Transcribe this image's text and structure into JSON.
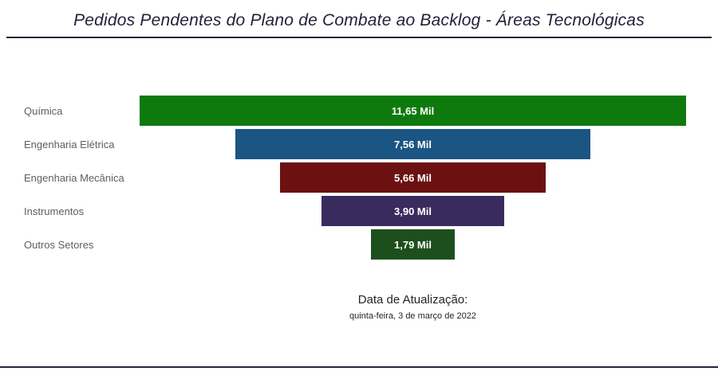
{
  "chart_data": {
    "type": "bar",
    "layout": "funnel-centered",
    "title": "Pedidos Pendentes do Plano de Combate ao Backlog - Áreas Tecnológicas",
    "categories": [
      "Química",
      "Engenharia Elétrica",
      "Engenharia Mecânica",
      "Instrumentos",
      "Outros Setores"
    ],
    "values_mil": [
      11.65,
      7.56,
      5.66,
      3.9,
      1.79
    ],
    "value_labels": [
      "11,65 Mil",
      "7,56 Mil",
      "5,66 Mil",
      "3,90 Mil",
      "1,79 Mil"
    ],
    "colors": [
      "#0e7a0e",
      "#1b5583",
      "#6b1111",
      "#3a2b5e",
      "#1d4f1d"
    ],
    "xlim": [
      0,
      11.65
    ],
    "grid": false,
    "legend": "none",
    "value_label_position": "inside-center",
    "category_label_position": "left"
  },
  "footer": {
    "label": "Data de Atualização:",
    "date": "quinta-feira, 3 de março de 2022"
  }
}
